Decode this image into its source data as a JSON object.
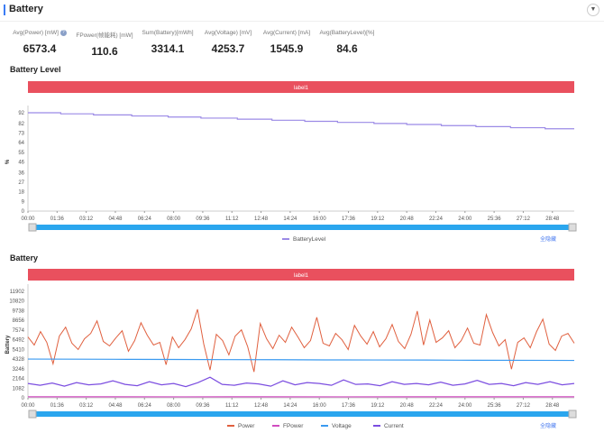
{
  "header": {
    "title": "Battery",
    "collapse_icon": "chevron-down-icon"
  },
  "stats": [
    {
      "label": "Avg(Power) [mW]",
      "value": "6573.4",
      "help": "?"
    },
    {
      "label": "FPower(帧能耗) [mW]",
      "value": "110.6"
    },
    {
      "label": "Sum(Battery)[mWh]",
      "value": "3314.1"
    },
    {
      "label": "Avg(Voltage) [mV]",
      "value": "4253.7"
    },
    {
      "label": "Avg(Current) [mA]",
      "value": "1545.9"
    },
    {
      "label": "Avg(BatteryLevel)[%]",
      "value": "84.6"
    }
  ],
  "hide_all_label": "全隐藏",
  "chart_data": [
    {
      "type": "line",
      "title": "Battery Level",
      "banner": "label1",
      "ylabel": "%",
      "ylim": [
        0,
        92
      ],
      "yticks": [
        "0",
        "9",
        "18",
        "27",
        "36",
        "46",
        "55",
        "64",
        "73",
        "82",
        "92"
      ],
      "xticks": [
        "00:00",
        "01:36",
        "03:12",
        "04:48",
        "06:24",
        "08:00",
        "09:36",
        "11:12",
        "12:48",
        "14:24",
        "16:00",
        "17:36",
        "19:12",
        "20:48",
        "22:24",
        "24:00",
        "25:36",
        "27:12",
        "28:48"
      ],
      "x_range_hours": [
        0,
        30
      ],
      "colors": {
        "BatteryLevel": "#9b8ae6",
        "banner": "#e9505e",
        "slider": "#2aa6ee"
      },
      "series": [
        {
          "name": "BatteryLevel",
          "x_hours": [
            0,
            1.8,
            3.6,
            5.7,
            7.7,
            9.5,
            11.5,
            13.4,
            15.2,
            17,
            19,
            20.8,
            22.7,
            24.6,
            26.5,
            28.4,
            30
          ],
          "values": [
            92,
            91,
            90,
            89,
            88,
            87,
            86,
            85,
            84,
            83,
            82,
            81,
            80,
            79,
            78,
            77,
            77
          ]
        }
      ]
    },
    {
      "type": "line",
      "title": "Battery",
      "banner": "label1",
      "ylabel": "Battery",
      "ylim": [
        0,
        11902
      ],
      "yticks": [
        "0",
        "1082",
        "2164",
        "3246",
        "4328",
        "5410",
        "6492",
        "7574",
        "8656",
        "9738",
        "10820",
        "11902"
      ],
      "xticks": [
        "00:00",
        "01:36",
        "03:12",
        "04:48",
        "06:24",
        "08:00",
        "09:36",
        "11:12",
        "12:48",
        "14:24",
        "16:00",
        "17:36",
        "19:12",
        "20:48",
        "22:24",
        "24:00",
        "25:36",
        "27:12",
        "28:48"
      ],
      "x_range_hours": [
        0,
        30
      ],
      "colors": {
        "Power": "#e0603f",
        "FPower": "#d04cc0",
        "Voltage": "#3a9af0",
        "Current": "#7b4de0"
      },
      "series": [
        {
          "name": "Power",
          "values": [
            6800,
            5900,
            7400,
            6200,
            3800,
            6900,
            7900,
            6100,
            5400,
            6600,
            7200,
            8600,
            6300,
            5800,
            6700,
            7500,
            5200,
            6400,
            8400,
            7000,
            5900,
            6200,
            3700,
            6800,
            5600,
            6500,
            7700,
            9900,
            6000,
            3100,
            7100,
            6400,
            4800,
            6900,
            7600,
            5700,
            2900,
            8300,
            6600,
            5500,
            7000,
            6200,
            7900,
            6800,
            5600,
            6400,
            9000,
            6100,
            5800,
            7200,
            6500,
            5400,
            8100,
            6900,
            6000,
            7400,
            5700,
            6600,
            8200,
            6300,
            5500,
            7100,
            9700,
            5900,
            8700,
            6200,
            6700,
            7500,
            5600,
            6400,
            7800,
            6100,
            5900,
            9300,
            7300,
            5800,
            6500,
            3200,
            6200,
            6700,
            5600,
            7400,
            8800,
            6000,
            5300,
            6900,
            7200,
            6100
          ]
        },
        {
          "name": "FPower",
          "values": [
            110,
            112,
            108,
            111,
            109,
            113,
            110,
            110
          ]
        },
        {
          "name": "Voltage",
          "values": [
            4330,
            4320,
            4300,
            4290,
            4270,
            4260,
            4240,
            4230,
            4220,
            4200,
            4190,
            4180
          ]
        },
        {
          "name": "Current",
          "values": [
            1600,
            1400,
            1650,
            1300,
            1700,
            1450,
            1550,
            1900,
            1500,
            1350,
            1800,
            1450,
            1600,
            1250,
            1700,
            2300,
            1500,
            1400,
            1650,
            1550,
            1300,
            1900,
            1450,
            1700,
            1600,
            1400,
            2000,
            1500,
            1550,
            1350,
            1800,
            1500,
            1600,
            1450,
            1750,
            1400,
            1550,
            1950,
            1500,
            1600,
            1350,
            1700,
            1500,
            1800,
            1450,
            1600
          ]
        }
      ]
    }
  ]
}
